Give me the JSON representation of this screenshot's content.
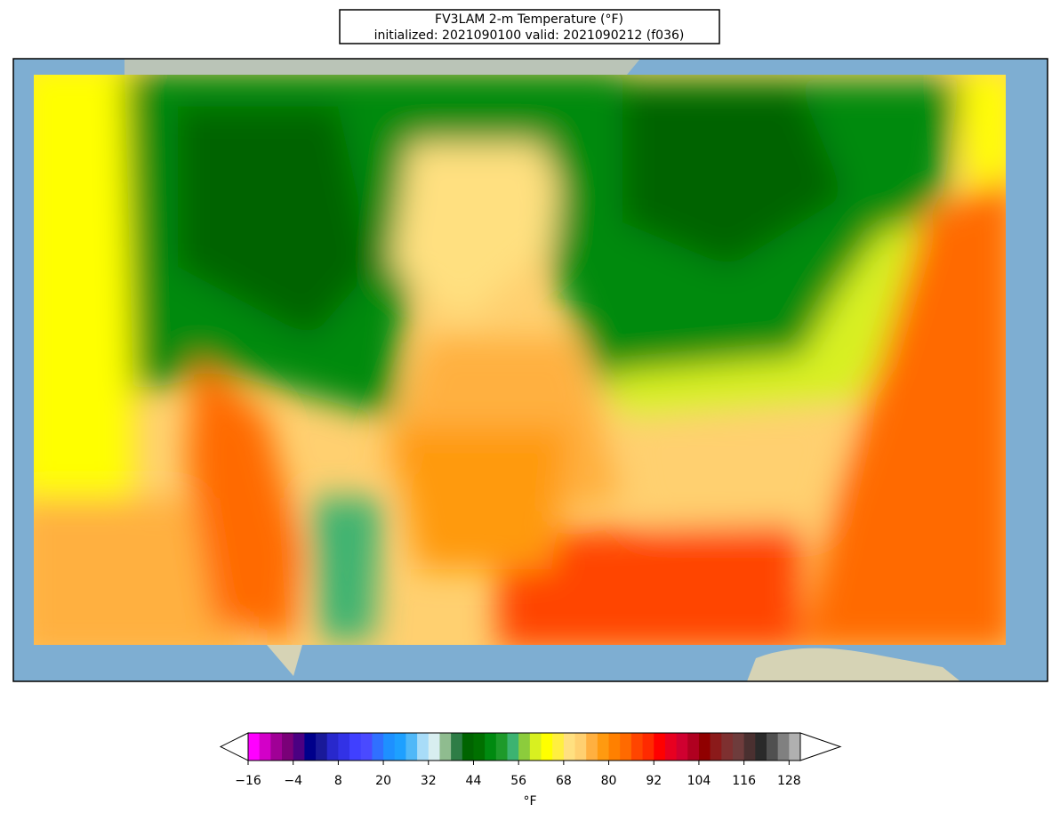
{
  "title": "FV3LAM 2-m Temperature (°F)",
  "subtitle": "initialized: 2021090100 valid: 2021090212 (f036)",
  "colorbar": {
    "label": "°F",
    "extend": "both",
    "levels": [
      -16,
      -13,
      -10,
      -7,
      -4,
      -1,
      2,
      5,
      8,
      11,
      14,
      17,
      20,
      23,
      26,
      29,
      32,
      35,
      38,
      41,
      44,
      47,
      50,
      53,
      56,
      59,
      62,
      65,
      68,
      71,
      74,
      77,
      80,
      83,
      86,
      89,
      92,
      95,
      98,
      101,
      104,
      107,
      110,
      113,
      116,
      119,
      122,
      125,
      128,
      131
    ],
    "colors": [
      "#ff00ff",
      "#d300c8",
      "#a00096",
      "#7a0078",
      "#4b0082",
      "#00008b",
      "#191999",
      "#2828cc",
      "#3232e6",
      "#4040ff",
      "#4a4aff",
      "#3070ff",
      "#1e90ff",
      "#1ea0ff",
      "#50b8f8",
      "#a8dcf8",
      "#d8eef0",
      "#8fbc8f",
      "#2e7d46",
      "#006400",
      "#007000",
      "#008a10",
      "#1e9a2a",
      "#3cb371",
      "#8ccc3c",
      "#d8f020",
      "#ffff00",
      "#ffef40",
      "#ffe080",
      "#ffd070",
      "#ffb040",
      "#ff9a10",
      "#ff8000",
      "#ff6a00",
      "#ff4500",
      "#ff2a00",
      "#ff0000",
      "#e80020",
      "#d00030",
      "#b00020",
      "#900000",
      "#8b1a1a",
      "#7e3030",
      "#6e3c3c",
      "#4a3030",
      "#2a2a2a",
      "#505050",
      "#808080",
      "#b0b0b0"
    ],
    "ticks": [
      {
        "value": -16,
        "label": "−16"
      },
      {
        "value": -4,
        "label": "−4"
      },
      8,
      20,
      32,
      44,
      56,
      68,
      80,
      92,
      104,
      116,
      128
    ]
  }
}
